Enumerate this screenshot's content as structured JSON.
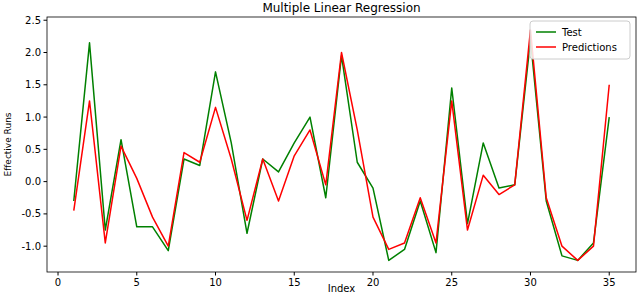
{
  "chart_data": {
    "type": "line",
    "title": "Multiple Linear Regression",
    "x_label": "Index",
    "y_label": "Effective Runs",
    "x": [
      1,
      2,
      3,
      4,
      5,
      6,
      7,
      8,
      9,
      10,
      11,
      12,
      13,
      14,
      15,
      16,
      17,
      18,
      19,
      20,
      21,
      22,
      23,
      24,
      25,
      26,
      27,
      28,
      29,
      30,
      31,
      32,
      33,
      34,
      35
    ],
    "series": [
      {
        "name": "Test",
        "color": "#008000",
        "values": [
          -0.3,
          2.15,
          -0.75,
          0.65,
          -0.7,
          -0.7,
          -1.07,
          0.35,
          0.25,
          1.7,
          0.6,
          -0.8,
          0.35,
          0.15,
          0.6,
          1.0,
          -0.25,
          1.95,
          0.3,
          -0.1,
          -1.22,
          -1.05,
          -0.3,
          -1.1,
          1.45,
          -0.65,
          0.6,
          -0.1,
          -0.05,
          2.2,
          -0.3,
          -1.15,
          -1.22,
          -0.95,
          1.0
        ]
      },
      {
        "name": "Predictions",
        "color": "#ff0000",
        "values": [
          -0.45,
          1.25,
          -0.95,
          0.55,
          0.05,
          -0.55,
          -1.0,
          0.45,
          0.3,
          1.15,
          0.35,
          -0.6,
          0.35,
          -0.3,
          0.4,
          0.8,
          -0.05,
          2.0,
          0.8,
          -0.55,
          -1.05,
          -0.95,
          -0.25,
          -0.95,
          1.25,
          -0.75,
          0.1,
          -0.2,
          -0.05,
          2.35,
          -0.25,
          -1.0,
          -1.22,
          -1.0,
          1.5
        ]
      }
    ],
    "xlim": [
      -0.7,
      36.7
    ],
    "xticks": [
      0,
      5,
      10,
      15,
      20,
      25,
      30,
      35
    ],
    "ylim": [
      -1.4,
      2.55
    ],
    "yticks": [
      {
        "value": -1,
        "label": "-1.0"
      },
      {
        "value": -0.5,
        "label": "-0.5"
      },
      {
        "value": 0,
        "label": "0.0"
      },
      {
        "value": 0.5,
        "label": "0.5"
      },
      {
        "value": 1,
        "label": "1.0"
      },
      {
        "value": 1.5,
        "label": "1.5"
      },
      {
        "value": 2,
        "label": "2.0"
      },
      {
        "value": 2.5,
        "label": "2.5"
      }
    ],
    "legend": "upper right",
    "grid": false
  }
}
